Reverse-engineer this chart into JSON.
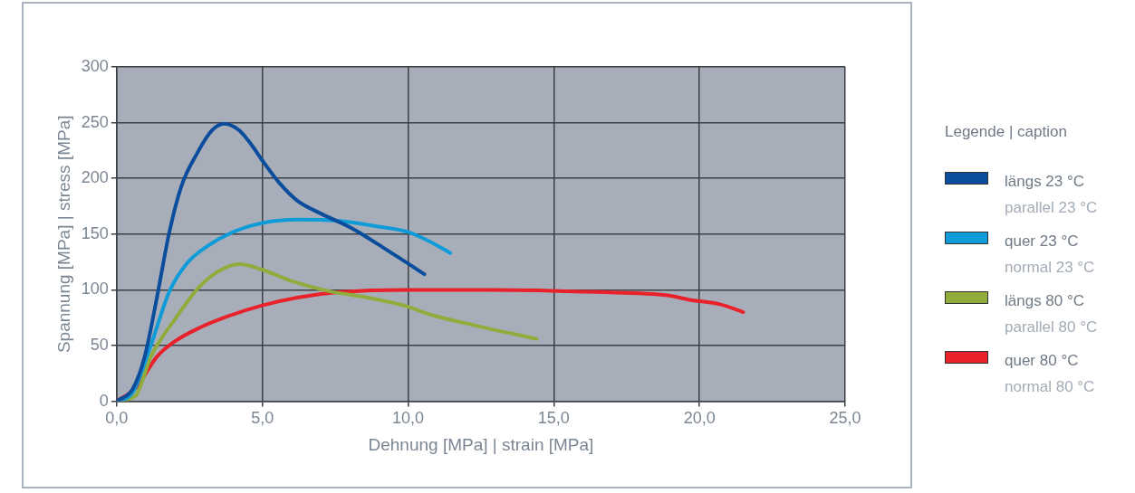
{
  "chart_data": {
    "type": "line",
    "xlabel": "Dehnung [MPa] | strain [MPa]",
    "ylabel": "Spannung [MPa] | stress [MPa]",
    "legend_title": "Legende | caption",
    "xlim": [
      0,
      25
    ],
    "ylim": [
      0,
      300
    ],
    "xticks": [
      {
        "value": 0,
        "label": "0,0"
      },
      {
        "value": 5,
        "label": "5,0"
      },
      {
        "value": 10,
        "label": "10,0"
      },
      {
        "value": 15,
        "label": "15,0"
      },
      {
        "value": 20,
        "label": "20,0"
      },
      {
        "value": 25,
        "label": "25,0"
      }
    ],
    "yticks": [
      0,
      50,
      100,
      150,
      200,
      250,
      300
    ],
    "grid": true,
    "legend": "right",
    "marker": "none",
    "line_style": "solid",
    "series": [
      {
        "name": "längs 23 °C\nparallel 23 °C",
        "color": "#0a4d9c",
        "x": [
          0,
          0.55,
          0.96,
          1.38,
          1.8,
          2.22,
          2.75,
          3.27,
          3.69,
          4.21,
          4.63,
          5.0,
          5.58,
          6.2,
          7.04,
          8.09,
          9.14,
          9.98,
          10.56
        ],
        "values": [
          0,
          11,
          40,
          93,
          151,
          193,
          222,
          243,
          249,
          243,
          230,
          216,
          196,
          180,
          168,
          155,
          138,
          124,
          114
        ]
      },
      {
        "name": "quer 23 °C\nnormal 23 °C",
        "color": "#0f9ad8",
        "x": [
          0,
          0.55,
          1.17,
          1.8,
          2.42,
          3.16,
          4.1,
          5.0,
          6.2,
          7.57,
          8.93,
          9.98,
          10.7,
          11.45
        ],
        "values": [
          0,
          8,
          50,
          98,
          124,
          140,
          153,
          160,
          163,
          162,
          157,
          152,
          144,
          133
        ]
      },
      {
        "name": "längs 80 °C\nparallel 80 °C",
        "color": "#8fac3c",
        "x": [
          0,
          0.65,
          1.17,
          2.01,
          2.85,
          3.58,
          4.21,
          5.0,
          6.0,
          7.25,
          8.62,
          9.98,
          10.74,
          12.31,
          14.41
        ],
        "values": [
          0,
          5,
          40,
          74,
          103,
          118,
          123,
          118,
          108,
          99,
          93,
          85,
          78,
          68,
          56
        ]
      },
      {
        "name": "quer 80 °C\nnormal 80 °C",
        "color": "#e8212b",
        "x": [
          0,
          0.65,
          1.38,
          2.01,
          2.85,
          3.9,
          5.0,
          6.2,
          7.67,
          10.0,
          12.84,
          16.5,
          18.92,
          19.66,
          20.7,
          21.5
        ],
        "values": [
          0,
          12,
          40,
          54,
          66,
          77,
          86,
          93,
          98,
          100,
          100,
          98,
          95,
          91,
          87,
          80
        ]
      }
    ]
  }
}
